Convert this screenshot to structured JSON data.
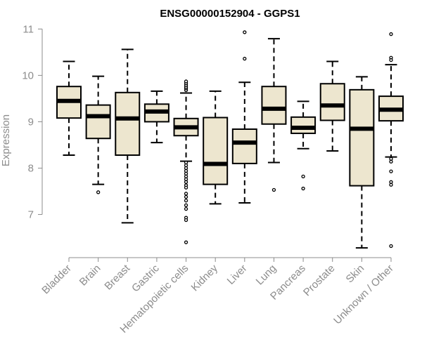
{
  "chart_data": {
    "type": "box",
    "title": "ENSG00000152904 - GGPS1",
    "xlabel": "",
    "ylabel": "Expression",
    "ylim": [
      6.1,
      11.05
    ],
    "yticks": [
      7,
      8,
      9,
      10,
      11
    ],
    "box_fill": "#ede6cf",
    "categories": [
      "Bladder",
      "Brain",
      "Breast",
      "Gastric",
      "Hematopoietic cells",
      "Kidney",
      "Liver",
      "Lung",
      "Pancreas",
      "Prostate",
      "Skin",
      "Unknown / Other"
    ],
    "boxes": [
      {
        "name": "Bladder",
        "whisker_low": 8.28,
        "q1": 9.08,
        "median": 9.45,
        "q3": 9.76,
        "whisker_high": 10.3,
        "outliers": []
      },
      {
        "name": "Brain",
        "whisker_low": 7.65,
        "q1": 8.64,
        "median": 9.12,
        "q3": 9.36,
        "whisker_high": 9.98,
        "outliers": [
          7.48
        ]
      },
      {
        "name": "Breast",
        "whisker_low": 6.82,
        "q1": 8.28,
        "median": 9.07,
        "q3": 9.63,
        "whisker_high": 10.56,
        "outliers": []
      },
      {
        "name": "Gastric",
        "whisker_low": 8.55,
        "q1": 9.0,
        "median": 9.22,
        "q3": 9.38,
        "whisker_high": 9.66,
        "outliers": []
      },
      {
        "name": "Hematopoietic cells",
        "whisker_low": 8.15,
        "q1": 8.7,
        "median": 8.88,
        "q3": 9.07,
        "whisker_high": 9.62,
        "outliers": [
          9.68,
          9.72,
          9.75,
          9.79,
          9.83,
          9.87,
          8.12,
          8.06,
          8.0,
          7.94,
          7.88,
          7.82,
          7.76,
          7.7,
          7.63,
          7.58,
          7.45,
          7.38,
          7.3,
          7.2,
          7.12,
          6.93,
          6.88,
          6.4
        ]
      },
      {
        "name": "Kidney",
        "whisker_low": 7.23,
        "q1": 7.65,
        "median": 8.09,
        "q3": 9.09,
        "whisker_high": 9.66,
        "outliers": []
      },
      {
        "name": "Liver",
        "whisker_low": 7.25,
        "q1": 8.1,
        "median": 8.55,
        "q3": 8.84,
        "whisker_high": 9.85,
        "outliers": [
          10.93,
          10.36
        ]
      },
      {
        "name": "Lung",
        "whisker_low": 8.12,
        "q1": 8.95,
        "median": 9.28,
        "q3": 9.76,
        "whisker_high": 10.79,
        "outliers": [
          7.53
        ]
      },
      {
        "name": "Pancreas",
        "whisker_low": 8.42,
        "q1": 8.75,
        "median": 8.87,
        "q3": 9.1,
        "whisker_high": 9.44,
        "outliers": [
          7.82,
          7.56
        ]
      },
      {
        "name": "Prostate",
        "whisker_low": 8.37,
        "q1": 9.03,
        "median": 9.35,
        "q3": 9.82,
        "whisker_high": 10.3,
        "outliers": []
      },
      {
        "name": "Skin",
        "whisker_low": 6.28,
        "q1": 7.62,
        "median": 8.85,
        "q3": 9.69,
        "whisker_high": 9.97,
        "outliers": []
      },
      {
        "name": "Unknown / Other",
        "whisker_low": 8.24,
        "q1": 9.02,
        "median": 9.26,
        "q3": 9.55,
        "whisker_high": 10.23,
        "outliers": [
          10.89,
          10.38,
          10.33,
          8.2,
          8.14,
          7.93,
          7.7,
          7.64,
          6.32
        ]
      }
    ]
  }
}
